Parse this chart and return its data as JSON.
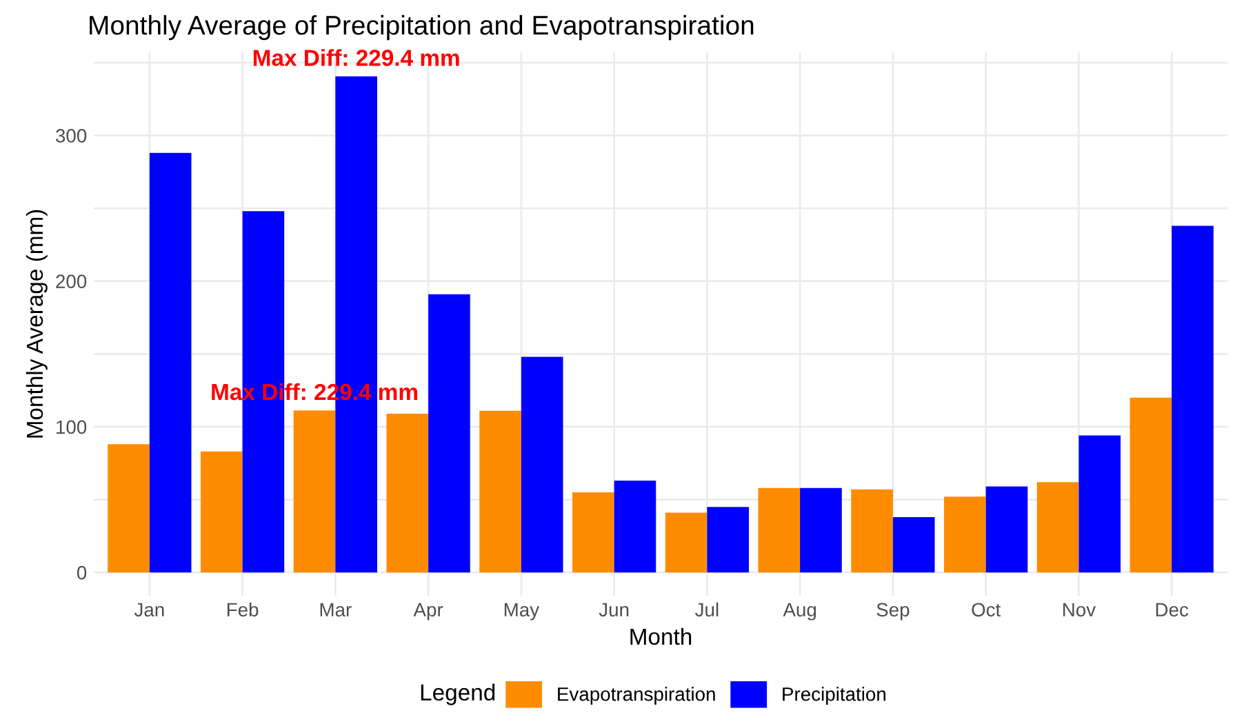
{
  "chart_data": {
    "type": "bar",
    "title": "Monthly Average of Precipitation and Evapotranspiration",
    "xlabel": "Month",
    "ylabel": "Monthly Average (mm)",
    "legend_title": "Legend",
    "categories": [
      "Jan",
      "Feb",
      "Mar",
      "Apr",
      "May",
      "Jun",
      "Jul",
      "Aug",
      "Sep",
      "Oct",
      "Nov",
      "Dec"
    ],
    "series": [
      {
        "name": "Evapotranspiration",
        "color": "#ff8c00",
        "values": [
          88,
          83,
          111.2,
          109,
          111,
          55,
          41,
          58,
          57,
          52,
          62,
          120
        ]
      },
      {
        "name": "Precipitation",
        "color": "#0000ff",
        "values": [
          288,
          248,
          340.6,
          191,
          148,
          63,
          45,
          58,
          38,
          59,
          94,
          238
        ]
      }
    ],
    "annotations": [
      {
        "text": "Max Diff: 229.4 mm",
        "x": "Mar",
        "y": 340.6
      },
      {
        "text": "Max Diff: 229.4 mm",
        "x": "Mar",
        "y": 111.2
      }
    ],
    "ylim": [
      -16,
      357
    ],
    "yticks": [
      0,
      {
        "value": 50,
        "label": null
      },
      100,
      {
        "value": 150,
        "label": null
      },
      200,
      {
        "value": 250,
        "label": null
      },
      300,
      {
        "value": 350,
        "label": null
      }
    ],
    "grid": true,
    "legend": "bottom"
  }
}
